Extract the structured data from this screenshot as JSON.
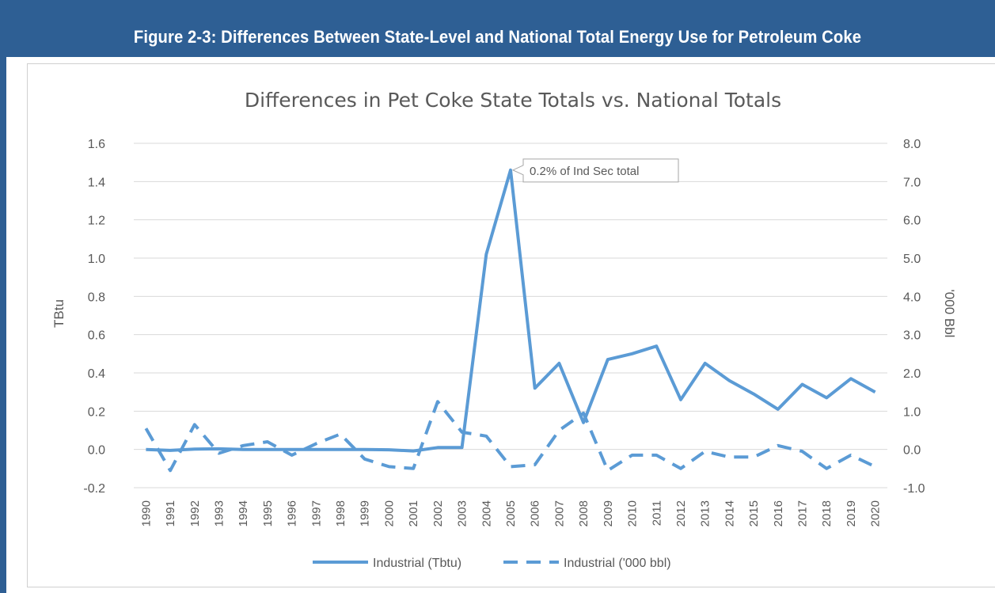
{
  "figure": {
    "caption": "Figure 2-3:   Differences Between State-Level and National Total Energy Use for Petroleum Coke"
  },
  "colors": {
    "header_bg": "#2e5f94",
    "line": "#5b9bd5",
    "grid": "#d9d9d9",
    "text": "#595959"
  },
  "chart_data": {
    "type": "line",
    "title": "Differences in Pet Coke State Totals vs. National Totals",
    "ylabel": "TBtu",
    "y2label": "'000 Bbl",
    "ylim": [
      -0.2,
      1.6
    ],
    "y2lim": [
      -1.0,
      8.0
    ],
    "yticks": [
      "1.6",
      "1.4",
      "1.2",
      "1.0",
      "0.8",
      "0.6",
      "0.4",
      "0.2",
      "0.0",
      "-0.2"
    ],
    "y2ticks": [
      "8.0",
      "7.0",
      "6.0",
      "5.0",
      "4.0",
      "3.0",
      "2.0",
      "1.0",
      "0.0",
      "-1.0"
    ],
    "grid": true,
    "legend_position": "bottom",
    "x": [
      "1990",
      "1991",
      "1992",
      "1993",
      "1994",
      "1995",
      "1996",
      "1997",
      "1998",
      "1999",
      "2000",
      "2001",
      "2002",
      "2003",
      "2004",
      "2005",
      "2006",
      "2007",
      "2008",
      "2009",
      "2010",
      "2011",
      "2012",
      "2013",
      "2014",
      "2015",
      "2016",
      "2017",
      "2018",
      "2019",
      "2020"
    ],
    "series": [
      {
        "name": "Industrial (Tbtu)",
        "axis": "left",
        "style": "solid",
        "values": [
          0.0,
          -0.005,
          0.002,
          0.003,
          0.0,
          0.0,
          0.0,
          0.0,
          0.0,
          0.0,
          -0.002,
          -0.008,
          0.01,
          0.01,
          1.02,
          1.46,
          0.32,
          0.45,
          0.14,
          0.47,
          0.5,
          0.54,
          0.26,
          0.45,
          0.36,
          0.29,
          0.21,
          0.34,
          0.27,
          0.37,
          0.3
        ]
      },
      {
        "name": "Industrial ('000 bbl)",
        "axis": "right",
        "style": "dashed",
        "values": [
          0.55,
          -0.55,
          0.65,
          -0.1,
          0.1,
          0.2,
          -0.15,
          0.15,
          0.4,
          -0.25,
          -0.45,
          -0.5,
          1.25,
          0.45,
          0.35,
          -0.45,
          -0.4,
          0.5,
          0.95,
          -0.55,
          -0.15,
          -0.15,
          -0.5,
          -0.05,
          -0.2,
          -0.2,
          0.1,
          -0.05,
          -0.5,
          -0.15,
          -0.45
        ]
      }
    ],
    "annotations": [
      {
        "text": "0.2% of Ind Sec total",
        "x": "2005",
        "y": 1.46
      }
    ]
  }
}
